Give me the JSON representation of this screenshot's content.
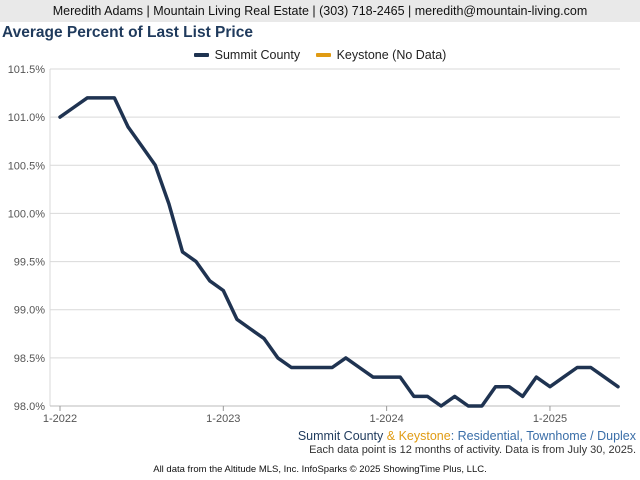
{
  "header": {
    "contact": "Meredith Adams | Mountain Living Real Estate | (303) 718-2465 | meredith@mountain-living.com"
  },
  "colors": {
    "series": "#1f3351",
    "series2": "#e09b13",
    "grid": "#d9d9d9",
    "axis": "#555555"
  },
  "chart_data": {
    "type": "line",
    "title": "Average Percent of Last List Price",
    "xlabel": "",
    "ylabel": "",
    "ylim": [
      98.0,
      101.5
    ],
    "y_ticks": [
      "98.0%",
      "98.5%",
      "99.0%",
      "99.5%",
      "100.0%",
      "100.5%",
      "101.0%",
      "101.5%"
    ],
    "y_tick_values": [
      98.0,
      98.5,
      99.0,
      99.5,
      100.0,
      100.5,
      101.0,
      101.5
    ],
    "x_ticks": [
      "1-2022",
      "1-2023",
      "1-2024",
      "1-2025"
    ],
    "x_tick_index": [
      0,
      12,
      24,
      36
    ],
    "grid": true,
    "legend_position": "top",
    "legend": [
      {
        "name": "Summit County",
        "color": "#1f3351"
      },
      {
        "name": "Keystone (No Data)",
        "color": "#e09b13"
      }
    ],
    "x": [
      "1-2022",
      "2-2022",
      "3-2022",
      "4-2022",
      "5-2022",
      "6-2022",
      "7-2022",
      "8-2022",
      "9-2022",
      "10-2022",
      "11-2022",
      "12-2022",
      "1-2023",
      "2-2023",
      "3-2023",
      "4-2023",
      "5-2023",
      "6-2023",
      "7-2023",
      "8-2023",
      "9-2023",
      "10-2023",
      "11-2023",
      "12-2023",
      "1-2024",
      "2-2024",
      "3-2024",
      "4-2024",
      "5-2024",
      "6-2024",
      "7-2024",
      "8-2024",
      "9-2024",
      "10-2024",
      "11-2024",
      "12-2024",
      "1-2025",
      "2-2025",
      "3-2025",
      "4-2025",
      "5-2025",
      "6-2025"
    ],
    "series": [
      {
        "name": "Summit County",
        "values": [
          101.0,
          101.1,
          101.2,
          101.2,
          101.2,
          100.9,
          100.7,
          100.5,
          100.1,
          99.6,
          99.5,
          99.3,
          99.2,
          98.9,
          98.8,
          98.7,
          98.5,
          98.4,
          98.4,
          98.4,
          98.4,
          98.5,
          98.4,
          98.3,
          98.3,
          98.3,
          98.1,
          98.1,
          98.0,
          98.1,
          98.0,
          98.0,
          98.2,
          98.2,
          98.1,
          98.3,
          98.2,
          98.3,
          98.4,
          98.4,
          98.3,
          98.2
        ]
      }
    ]
  },
  "subtitle": {
    "county": "Summit County",
    "amp": " & ",
    "keystone": "Keystone",
    "colon": ": ",
    "rest": "Residential, Townhome / Duplex"
  },
  "note": "Each data point is 12 months of activity. Data is from July 30, 2025.",
  "footer": "All data from the Altitude MLS, Inc. InfoSparks © 2025 ShowingTime Plus, LLC."
}
